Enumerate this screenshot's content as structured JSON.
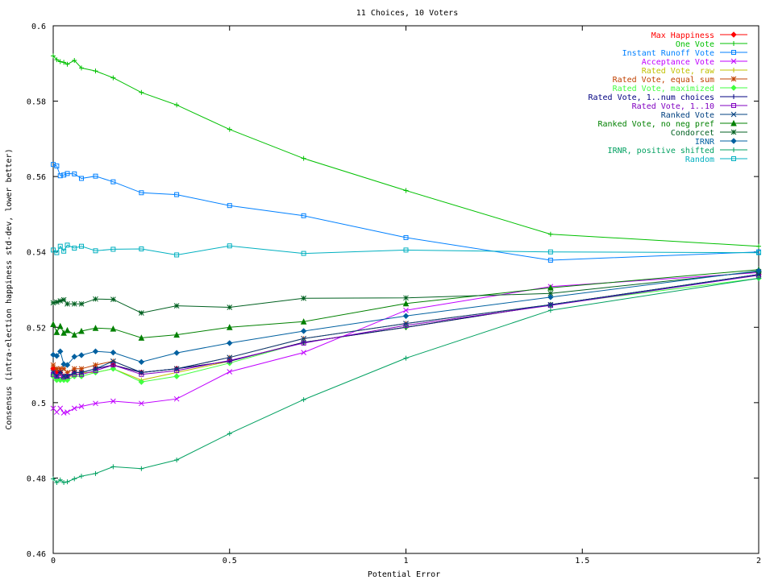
{
  "chart_data": {
    "type": "line",
    "title": "11 Choices, 10 Voters",
    "xlabel": "Potential Error",
    "ylabel": "Consensus (intra-election happiness std-dev, lower better)",
    "xlim": [
      0,
      2
    ],
    "ylim": [
      0.46,
      0.6
    ],
    "x_ticks": [
      0,
      0.5,
      1,
      1.5,
      2
    ],
    "x_tick_labels": [
      "0",
      "0.5",
      "1",
      "1.5",
      "2"
    ],
    "y_ticks": [
      0.46,
      0.48,
      0.5,
      0.52,
      0.54,
      0.56,
      0.58,
      0.6
    ],
    "y_tick_labels": [
      "0.46",
      "0.48",
      "0.5",
      "0.52",
      "0.54",
      "0.56",
      "0.58",
      "0.6"
    ],
    "grid": false,
    "legend_position": "top-right",
    "x": [
      0,
      0.01,
      0.02,
      0.03,
      0.04,
      0.06,
      0.08,
      0.12,
      0.17,
      0.25,
      0.35,
      0.5,
      0.71,
      1,
      1.41,
      2
    ],
    "series": [
      {
        "name": "Max Happiness",
        "color": "#ff0000",
        "marker": "diamond",
        "values": [
          0.509,
          0.508,
          0.508,
          0.507,
          0.507,
          0.508,
          0.508,
          0.509,
          0.51,
          0.508,
          0.509,
          0.511,
          0.516,
          0.52,
          0.526,
          0.534
        ]
      },
      {
        "name": "One Vote",
        "color": "#00c000",
        "marker": "plus",
        "values": [
          0.592,
          0.591,
          0.5905,
          0.5903,
          0.5898,
          0.5908,
          0.5888,
          0.588,
          0.5862,
          0.5823,
          0.579,
          0.5725,
          0.5648,
          0.5563,
          0.5447,
          0.5415
        ]
      },
      {
        "name": "Instant Runoff Vote",
        "color": "#0080ff",
        "marker": "square",
        "values": [
          0.5632,
          0.5628,
          0.5602,
          0.5604,
          0.5608,
          0.5607,
          0.5595,
          0.5601,
          0.5586,
          0.5557,
          0.5552,
          0.5523,
          0.5496,
          0.5438,
          0.5378,
          0.54
        ]
      },
      {
        "name": "Acceptance Vote",
        "color": "#c000ff",
        "marker": "x",
        "values": [
          0.4985,
          0.4975,
          0.4985,
          0.4973,
          0.4975,
          0.4985,
          0.499,
          0.4998,
          0.5004,
          0.4998,
          0.501,
          0.5082,
          0.5133,
          0.5245,
          0.5308,
          0.5345
        ]
      },
      {
        "name": "Rated Vote, raw",
        "color": "#c0c000",
        "marker": "plus",
        "values": [
          0.507,
          0.506,
          0.506,
          0.507,
          0.507,
          0.507,
          0.508,
          0.508,
          0.509,
          0.506,
          0.508,
          0.511,
          0.516,
          0.52,
          0.526,
          0.534
        ]
      },
      {
        "name": "Rated Vote, equal sum",
        "color": "#c04000",
        "marker": "star",
        "values": [
          0.51,
          0.509,
          0.509,
          0.509,
          0.508,
          0.509,
          0.509,
          0.51,
          0.511,
          0.508,
          0.509,
          0.512,
          0.517,
          0.521,
          0.526,
          0.534
        ]
      },
      {
        "name": "Rated Vote, maximized",
        "color": "#40ff40",
        "marker": "diamond",
        "values": [
          0.507,
          0.506,
          0.506,
          0.506,
          0.506,
          0.507,
          0.507,
          0.508,
          0.509,
          0.5055,
          0.507,
          0.5105,
          0.516,
          0.52,
          0.526,
          0.533
        ]
      },
      {
        "name": "Rated Vote, 1..num choices",
        "color": "#000080",
        "marker": "plus",
        "values": [
          0.508,
          0.507,
          0.508,
          0.507,
          0.507,
          0.508,
          0.508,
          0.509,
          0.51,
          0.508,
          0.509,
          0.511,
          0.516,
          0.52,
          0.526,
          0.534
        ]
      },
      {
        "name": "Rated Vote, 1..10",
        "color": "#8000c0",
        "marker": "square",
        "values": [
          0.5075,
          0.507,
          0.5072,
          0.5068,
          0.507,
          0.5075,
          0.5075,
          0.5085,
          0.51,
          0.5075,
          0.5085,
          0.5112,
          0.5158,
          0.5205,
          0.5258,
          0.5338
        ]
      },
      {
        "name": "Ranked Vote",
        "color": "#004080",
        "marker": "x",
        "values": [
          0.508,
          0.507,
          0.508,
          0.507,
          0.507,
          0.508,
          0.508,
          0.509,
          0.511,
          0.508,
          0.509,
          0.512,
          0.517,
          0.521,
          0.526,
          0.534
        ]
      },
      {
        "name": "Ranked Vote, no neg pref",
        "color": "#008000",
        "marker": "triangle",
        "values": [
          0.5208,
          0.5187,
          0.5203,
          0.5185,
          0.5192,
          0.518,
          0.519,
          0.5198,
          0.5196,
          0.5172,
          0.518,
          0.52,
          0.5215,
          0.5263,
          0.5305,
          0.5353
        ]
      },
      {
        "name": "Condorcet",
        "color": "#006020",
        "marker": "star",
        "values": [
          0.5265,
          0.5267,
          0.527,
          0.5273,
          0.5262,
          0.5262,
          0.5262,
          0.5275,
          0.5274,
          0.5238,
          0.5257,
          0.5253,
          0.5277,
          0.5278,
          0.529,
          0.5348
        ]
      },
      {
        "name": "IRNR",
        "color": "#0060a0",
        "marker": "diamond",
        "values": [
          0.5127,
          0.5124,
          0.5136,
          0.5102,
          0.51,
          0.5122,
          0.5126,
          0.5136,
          0.5133,
          0.5108,
          0.5132,
          0.5158,
          0.519,
          0.523,
          0.528,
          0.535
        ]
      },
      {
        "name": "IRNR, positive shifted",
        "color": "#00a060",
        "marker": "plus",
        "values": [
          0.4798,
          0.4788,
          0.4795,
          0.4788,
          0.479,
          0.4798,
          0.4805,
          0.4812,
          0.483,
          0.4825,
          0.4848,
          0.4918,
          0.5008,
          0.5118,
          0.5245,
          0.533
        ]
      },
      {
        "name": "Random",
        "color": "#00b0c0",
        "marker": "square",
        "values": [
          0.5405,
          0.5398,
          0.5415,
          0.5402,
          0.5418,
          0.541,
          0.5415,
          0.5403,
          0.5407,
          0.5408,
          0.5392,
          0.5416,
          0.5396,
          0.5405,
          0.54,
          0.5398
        ]
      }
    ]
  }
}
